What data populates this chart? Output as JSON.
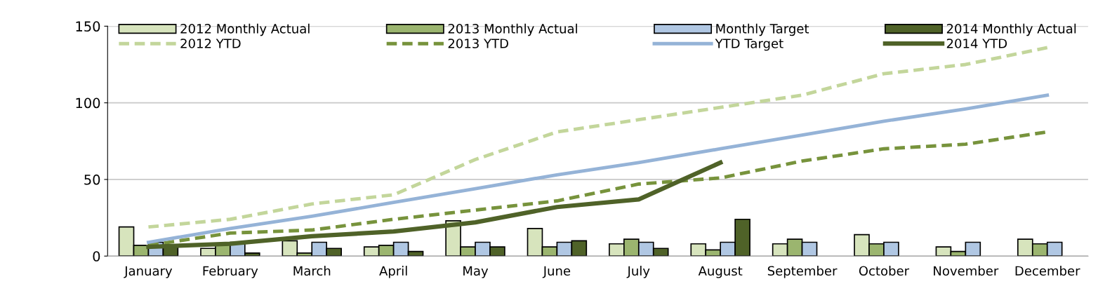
{
  "chart_data": {
    "type": "bar",
    "categories": [
      "January",
      "February",
      "March",
      "April",
      "May",
      "June",
      "July",
      "August",
      "September",
      "October",
      "November",
      "December"
    ],
    "series": [
      {
        "name": "2012 Monthly Actual",
        "color": "#d7e4bd",
        "values": [
          19,
          5,
          10,
          6,
          23,
          18,
          8,
          8,
          8,
          14,
          6,
          11
        ]
      },
      {
        "name": "2013 Monthly Actual",
        "color": "#9bb56f",
        "values": [
          7,
          8,
          2,
          7,
          6,
          6,
          11,
          4,
          11,
          8,
          3,
          8
        ]
      },
      {
        "name": "Monthly Target",
        "color": "#b0c7e3",
        "values": [
          9,
          9,
          9,
          9,
          9,
          9,
          9,
          9,
          9,
          9,
          9,
          9
        ]
      },
      {
        "name": "2014 Monthly Actual",
        "color": "#4f6228",
        "values": [
          6,
          2,
          5,
          3,
          6,
          10,
          5,
          24,
          null,
          null,
          null,
          null
        ]
      },
      {
        "name": "2012 YTD",
        "type": "line",
        "color": "#c3d69b",
        "line_style": "dashed",
        "values": [
          19,
          24,
          34,
          40,
          63,
          81,
          89,
          97,
          105,
          119,
          125,
          136
        ]
      },
      {
        "name": "2013 YTD",
        "type": "line",
        "color": "#77933c",
        "line_style": "dashed",
        "values": [
          7,
          15,
          17,
          24,
          30,
          36,
          47,
          51,
          62,
          70,
          73,
          81
        ]
      },
      {
        "name": "YTD Target",
        "type": "line",
        "color": "#95b3d7",
        "line_style": "solid",
        "values": [
          9,
          18,
          26,
          35,
          44,
          53,
          61,
          70,
          79,
          88,
          96,
          105
        ]
      },
      {
        "name": "2014 YTD",
        "type": "line",
        "color": "#4f6228",
        "line_style": "solid",
        "values": [
          6,
          8,
          13,
          16,
          22,
          32,
          37,
          61,
          null,
          null,
          null,
          null
        ]
      }
    ],
    "ylim": [
      0,
      150
    ],
    "yticks": [
      0,
      50,
      100,
      150
    ],
    "grid": "y",
    "legend": "top"
  }
}
